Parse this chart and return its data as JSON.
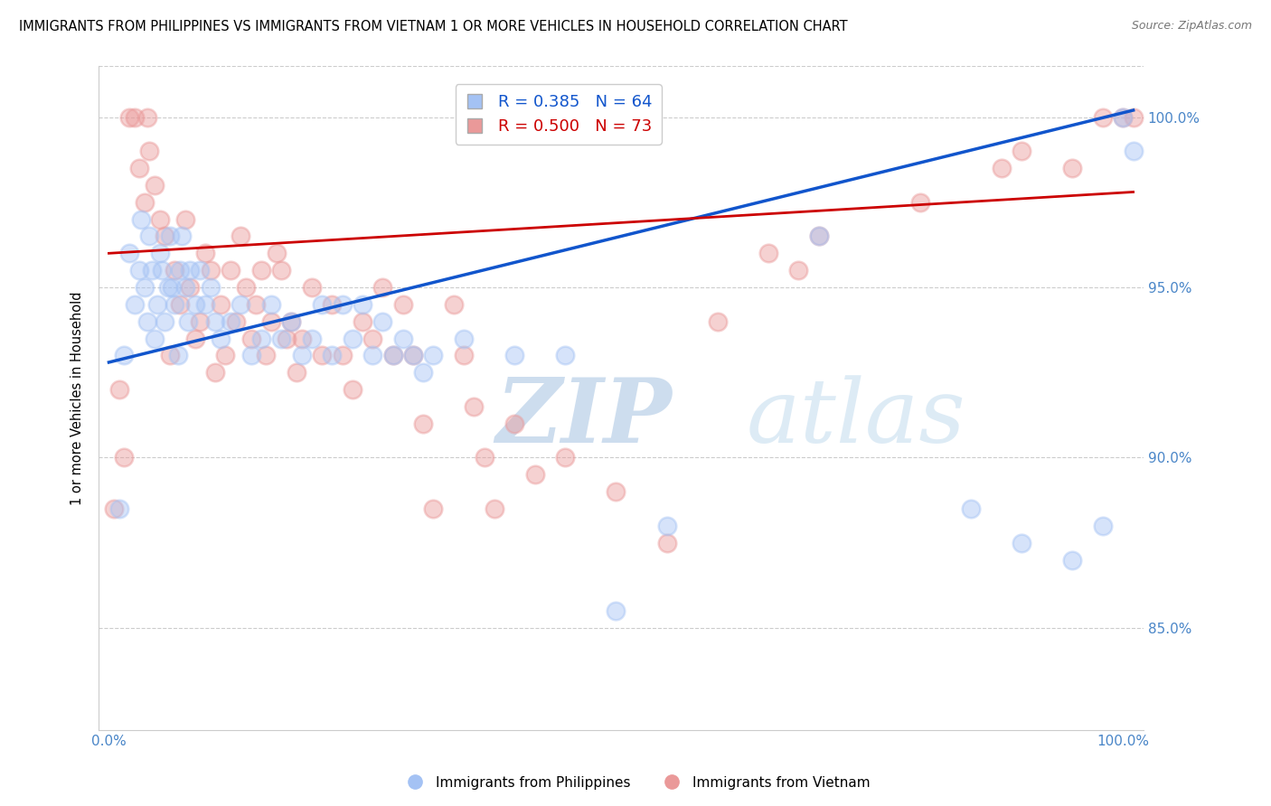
{
  "title": "IMMIGRANTS FROM PHILIPPINES VS IMMIGRANTS FROM VIETNAM 1 OR MORE VEHICLES IN HOUSEHOLD CORRELATION CHART",
  "source": "Source: ZipAtlas.com",
  "ylabel": "1 or more Vehicles in Household",
  "xlim": [
    -1,
    102
  ],
  "ylim": [
    82.0,
    101.5
  ],
  "yticks": [
    85,
    90,
    95,
    100
  ],
  "xticks": [
    0,
    100
  ],
  "xtick_labels": [
    "0.0%",
    "100.0%"
  ],
  "ytick_labels": [
    "85.0%",
    "90.0%",
    "95.0%",
    "100.0%"
  ],
  "blue_R": 0.385,
  "blue_N": 64,
  "pink_R": 0.5,
  "pink_N": 73,
  "blue_color": "#a4c2f4",
  "pink_color": "#ea9999",
  "blue_line_color": "#1155cc",
  "pink_line_color": "#cc0000",
  "axis_color": "#4a86c8",
  "background_color": "#ffffff",
  "blue_scatter_x": [
    1.0,
    1.5,
    2.0,
    2.5,
    3.0,
    3.2,
    3.5,
    3.8,
    4.0,
    4.2,
    4.5,
    4.8,
    5.0,
    5.2,
    5.5,
    5.8,
    6.0,
    6.2,
    6.5,
    6.8,
    7.0,
    7.2,
    7.5,
    7.8,
    8.0,
    8.5,
    9.0,
    9.5,
    10.0,
    10.5,
    11.0,
    12.0,
    13.0,
    14.0,
    15.0,
    16.0,
    17.0,
    18.0,
    19.0,
    20.0,
    21.0,
    22.0,
    23.0,
    24.0,
    25.0,
    26.0,
    27.0,
    28.0,
    29.0,
    30.0,
    31.0,
    32.0,
    35.0,
    40.0,
    45.0,
    50.0,
    55.0,
    70.0,
    85.0,
    90.0,
    95.0,
    98.0,
    100.0,
    101.0
  ],
  "blue_scatter_y": [
    88.5,
    93.0,
    96.0,
    94.5,
    95.5,
    97.0,
    95.0,
    94.0,
    96.5,
    95.5,
    93.5,
    94.5,
    96.0,
    95.5,
    94.0,
    95.0,
    96.5,
    95.0,
    94.5,
    93.0,
    95.5,
    96.5,
    95.0,
    94.0,
    95.5,
    94.5,
    95.5,
    94.5,
    95.0,
    94.0,
    93.5,
    94.0,
    94.5,
    93.0,
    93.5,
    94.5,
    93.5,
    94.0,
    93.0,
    93.5,
    94.5,
    93.0,
    94.5,
    93.5,
    94.5,
    93.0,
    94.0,
    93.0,
    93.5,
    93.0,
    92.5,
    93.0,
    93.5,
    93.0,
    93.0,
    85.5,
    88.0,
    96.5,
    88.5,
    87.5,
    87.0,
    88.0,
    100.0,
    99.0
  ],
  "pink_scatter_x": [
    0.5,
    1.0,
    1.5,
    2.0,
    2.5,
    3.0,
    3.5,
    3.8,
    4.0,
    4.5,
    5.0,
    5.5,
    6.0,
    6.5,
    7.0,
    7.5,
    8.0,
    8.5,
    9.0,
    9.5,
    10.0,
    10.5,
    11.0,
    11.5,
    12.0,
    12.5,
    13.0,
    13.5,
    14.0,
    14.5,
    15.0,
    15.5,
    16.0,
    16.5,
    17.0,
    17.5,
    18.0,
    18.5,
    19.0,
    20.0,
    21.0,
    22.0,
    23.0,
    24.0,
    25.0,
    26.0,
    27.0,
    28.0,
    29.0,
    30.0,
    31.0,
    32.0,
    34.0,
    35.0,
    36.0,
    37.0,
    38.0,
    40.0,
    42.0,
    45.0,
    50.0,
    55.0,
    60.0,
    65.0,
    68.0,
    70.0,
    80.0,
    88.0,
    90.0,
    95.0,
    98.0,
    100.0,
    101.0
  ],
  "pink_scatter_y": [
    88.5,
    92.0,
    90.0,
    100.0,
    100.0,
    98.5,
    97.5,
    100.0,
    99.0,
    98.0,
    97.0,
    96.5,
    93.0,
    95.5,
    94.5,
    97.0,
    95.0,
    93.5,
    94.0,
    96.0,
    95.5,
    92.5,
    94.5,
    93.0,
    95.5,
    94.0,
    96.5,
    95.0,
    93.5,
    94.5,
    95.5,
    93.0,
    94.0,
    96.0,
    95.5,
    93.5,
    94.0,
    92.5,
    93.5,
    95.0,
    93.0,
    94.5,
    93.0,
    92.0,
    94.0,
    93.5,
    95.0,
    93.0,
    94.5,
    93.0,
    91.0,
    88.5,
    94.5,
    93.0,
    91.5,
    90.0,
    88.5,
    91.0,
    89.5,
    90.0,
    89.0,
    87.5,
    94.0,
    96.0,
    95.5,
    96.5,
    97.5,
    98.5,
    99.0,
    98.5,
    100.0,
    100.0,
    100.0
  ],
  "blue_line_x0": 0,
  "blue_line_x1": 101,
  "blue_line_y0": 92.8,
  "blue_line_y1": 100.2,
  "pink_line_x0": 0,
  "pink_line_x1": 101,
  "pink_line_y0": 96.0,
  "pink_line_y1": 97.8
}
